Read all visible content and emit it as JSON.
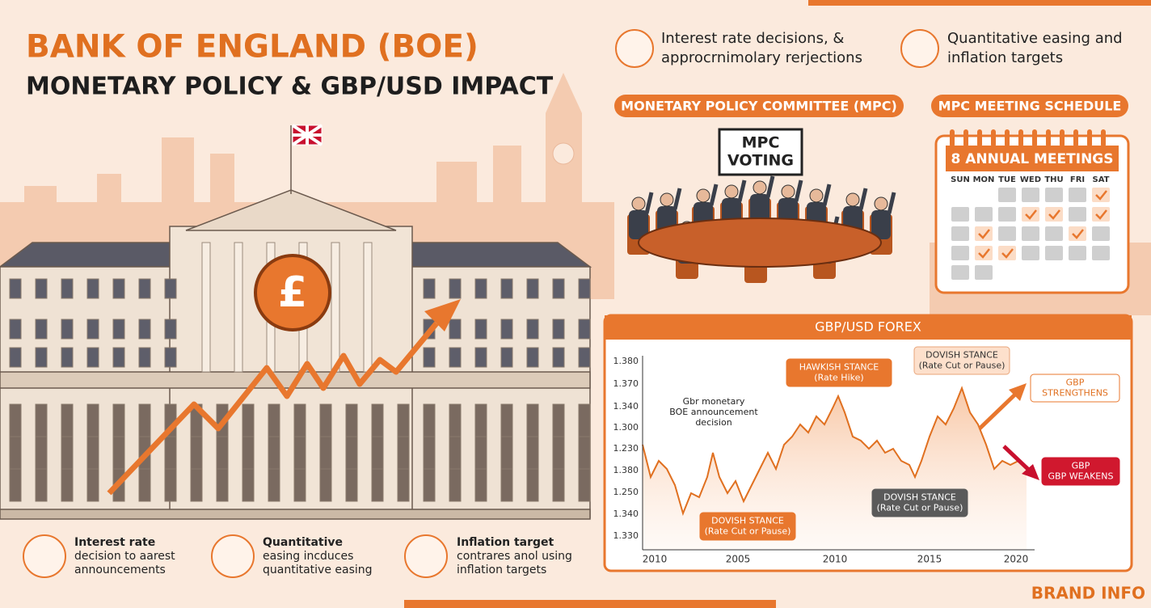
{
  "header": {
    "title": "BANK OF ENGLAND (BOE)",
    "subtitle": "MONETARY POLICY & GBP/USD IMPACT"
  },
  "top_features": [
    {
      "lines": [
        "Interest rate decisions, &",
        "approcrnimolary rerjections"
      ]
    },
    {
      "lines": [
        "Quantitative easing and",
        "inflation targets"
      ]
    }
  ],
  "building": {
    "coin_symbol": "£"
  },
  "mpc": {
    "title": "MONETARY POLICY COMMITTEE (MPC)",
    "sign": [
      "MPC",
      "VOTING"
    ]
  },
  "schedule": {
    "title": "MPC MEETING SCHEDULE",
    "banner": "8 ANNUAL MEETINGS",
    "weekdays": [
      "SUN",
      "MON",
      "TUE",
      "WED",
      "THU",
      "FRI",
      "SAT"
    ]
  },
  "forex": {
    "title": "GBP/USD FOREX",
    "y_labels": [
      "1.380",
      "1.370",
      "1.340",
      "1.300",
      "1.230",
      "1.380",
      "1.250",
      "1.340",
      "1.330"
    ],
    "x_labels": [
      "2010",
      "2005",
      "2010",
      "2015",
      "2020"
    ],
    "annotations": [
      {
        "lines": [
          "Gbr monetary",
          "BOE announcement",
          "decision"
        ],
        "style": "plain"
      },
      {
        "lines": [
          "HAWKISH STANCE",
          "(Rate Hike)"
        ],
        "style": "orange"
      },
      {
        "lines": [
          "DOVISH STANCE",
          "(Rate Cut or Pause)"
        ],
        "style": "peach"
      },
      {
        "lines": [
          "DOVISH STANCE",
          "(Rate Cut or Pause)"
        ],
        "style": "gray"
      },
      {
        "lines": [
          "DOVISH STANCE",
          "(Rate Cut or Pause)"
        ],
        "style": "orange"
      },
      {
        "lines": [
          "GBP",
          "STRENGTHENS"
        ],
        "style": "outline"
      },
      {
        "lines": [
          "GBP",
          "GBP WEAKENS"
        ],
        "style": "red"
      }
    ]
  },
  "bottom_features": [
    {
      "lines": [
        "Interest rate",
        "decision to aarest",
        "announcements"
      ]
    },
    {
      "lines": [
        "Quantitative",
        "easing incduces",
        "quantitative easing"
      ]
    },
    {
      "lines": [
        "Inflation target",
        "contrares anol using",
        "inflation targets"
      ]
    }
  ],
  "footer": {
    "brand": "BRAND INFO"
  }
}
